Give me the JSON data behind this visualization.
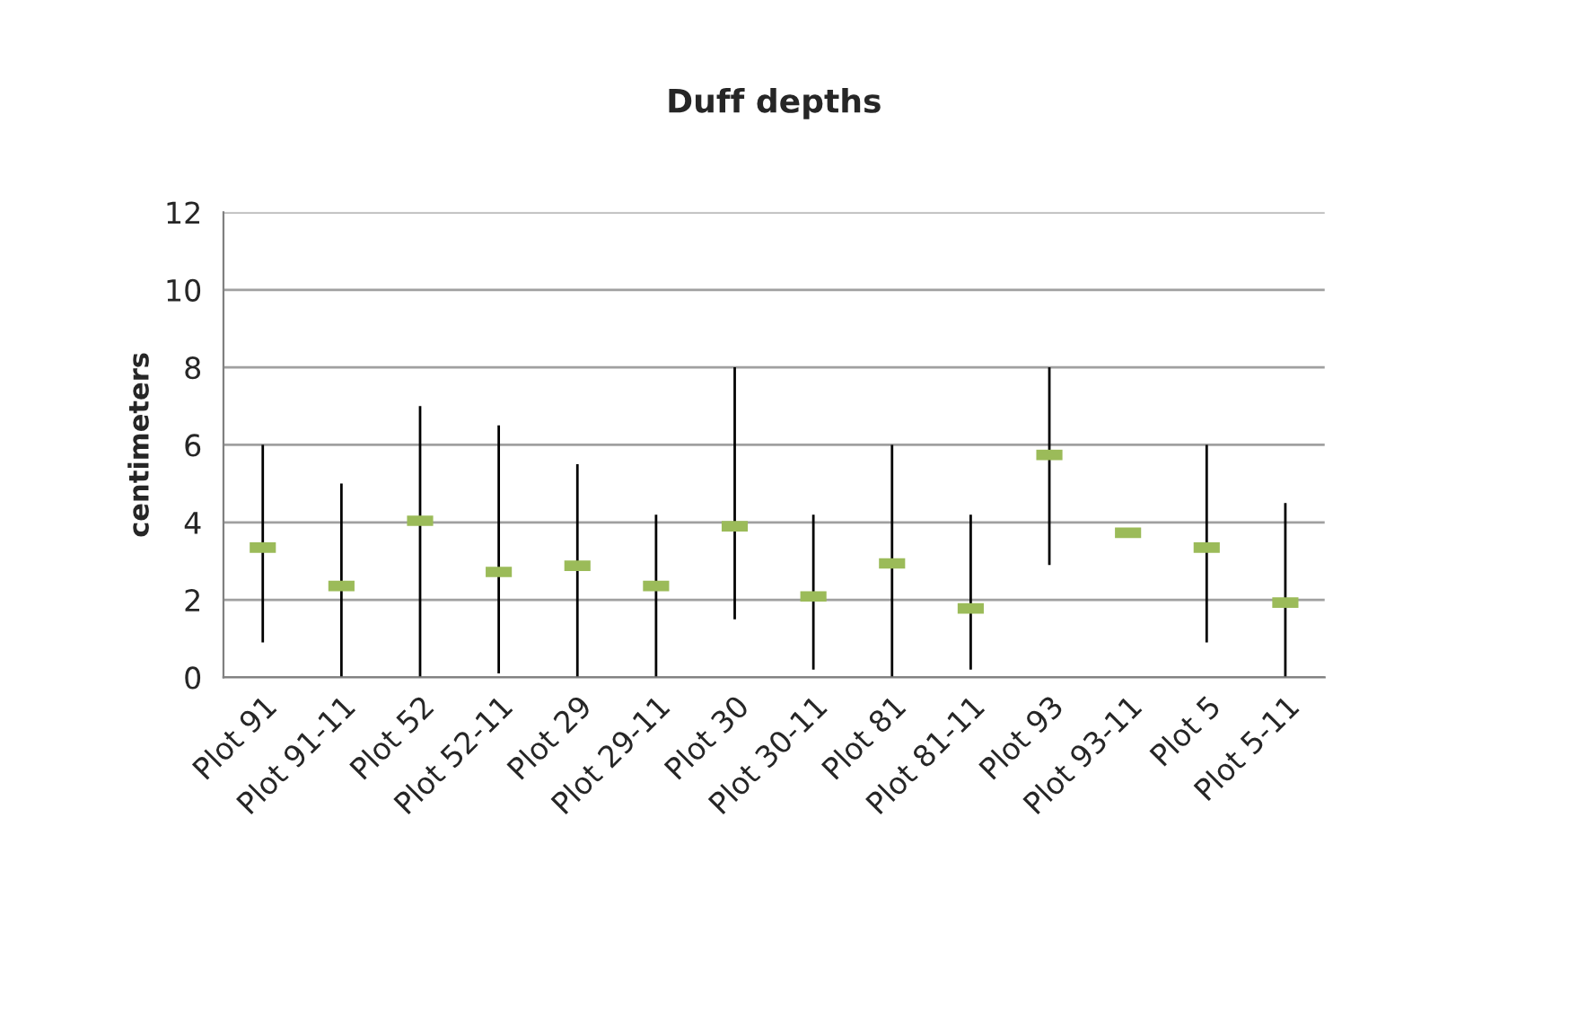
{
  "chart_data": {
    "type": "scatter",
    "title": "Duff depths",
    "ylabel": "centimeters",
    "categories": [
      "Plot 91",
      "Plot 91-11",
      "Plot 52",
      "Plot 52-11",
      "Plot 29",
      "Plot 29-11",
      "Plot 30",
      "Plot 30-11",
      "Plot 81",
      "Plot 81-11",
      "Plot 93",
      "Plot 93-11",
      "Plot 5",
      "Plot 5-11"
    ],
    "series": [
      {
        "color": "#9bbb59",
        "values": [
          3.35,
          2.36,
          4.04,
          2.72,
          2.88,
          2.36,
          3.9,
          2.09,
          2.94,
          1.78,
          5.74,
          3.73,
          3.35,
          1.93
        ],
        "errors": [
          [
            0.9,
            6
          ],
          [
            0,
            5
          ],
          [
            0,
            7
          ],
          [
            0.1,
            6.5
          ],
          [
            0,
            5.5
          ],
          [
            0,
            4.2
          ],
          [
            1.5,
            8
          ],
          [
            0.2,
            4.2
          ],
          [
            0,
            6
          ],
          [
            0.2,
            4.2
          ],
          [
            2.9,
            8
          ],
          null,
          [
            0.9,
            6
          ],
          [
            0,
            4.5
          ]
        ]
      }
    ],
    "ylim": [
      0,
      12
    ],
    "yticks": [
      0,
      2,
      4,
      6,
      8,
      10,
      12
    ],
    "grid": "y",
    "legend": false
  }
}
